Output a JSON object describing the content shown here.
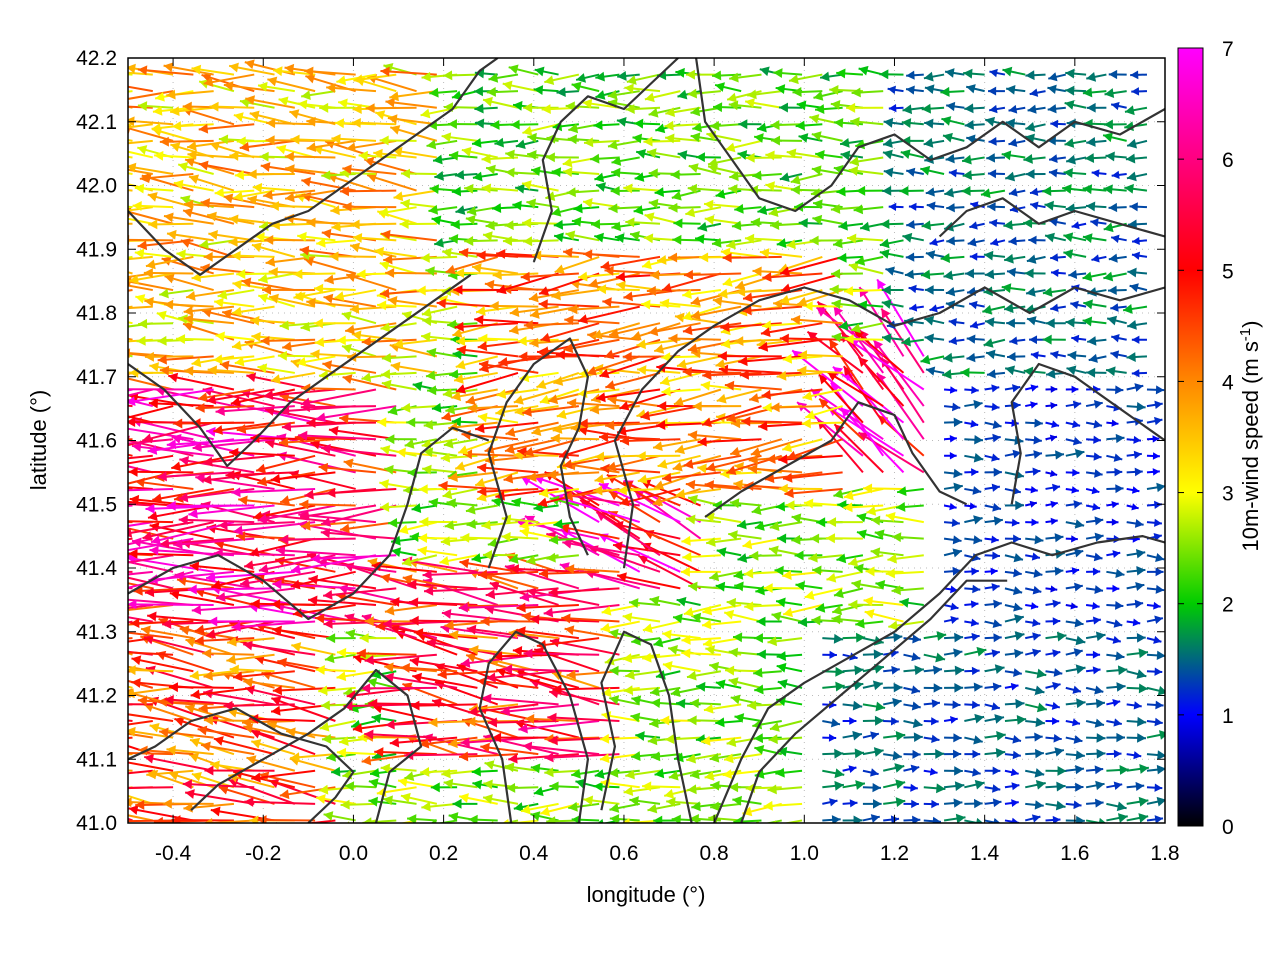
{
  "chart_data": {
    "type": "quiver",
    "xlabel": "longitude (°)",
    "ylabel": "latitude (°)",
    "xlim": [
      -0.5,
      1.8
    ],
    "ylim": [
      41.0,
      42.2
    ],
    "x_ticks": [
      "-0.4",
      "-0.2",
      "0.0",
      "0.2",
      "0.4",
      "0.6",
      "0.8",
      "1.0",
      "1.2",
      "1.4",
      "1.6",
      "1.8"
    ],
    "x_tick_values": [
      -0.4,
      -0.2,
      0.0,
      0.2,
      0.4,
      0.6,
      0.8,
      1.0,
      1.2,
      1.4,
      1.6,
      1.8
    ],
    "y_ticks": [
      "41.0",
      "41.1",
      "41.2",
      "41.3",
      "41.4",
      "41.5",
      "41.6",
      "41.7",
      "41.8",
      "41.9",
      "42.0",
      "42.1",
      "42.2"
    ],
    "y_tick_values": [
      41.0,
      41.1,
      41.2,
      41.3,
      41.4,
      41.5,
      41.6,
      41.7,
      41.8,
      41.9,
      42.0,
      42.1,
      42.2
    ],
    "grid": true,
    "colorbar": {
      "label": "10m-wind speed (m s",
      "label_sup": "-1",
      "label_end": ")",
      "range": [
        0,
        7
      ],
      "ticks": [
        "0",
        "1",
        "2",
        "3",
        "4",
        "5",
        "6",
        "7"
      ],
      "tick_values": [
        0,
        1,
        2,
        3,
        4,
        5,
        6,
        7
      ],
      "colors": [
        "#000000",
        "#0000ff",
        "#00cc00",
        "#ffff00",
        "#ff8800",
        "#ff0000",
        "#ff00ff"
      ]
    },
    "wind_field_regions": [
      {
        "lon": [
          -0.5,
          0.0
        ],
        "lat": [
          41.0,
          41.3
        ],
        "u": -4.0,
        "v": 0.4,
        "speed": 4.5
      },
      {
        "lon": [
          -0.5,
          0.1
        ],
        "lat": [
          41.3,
          41.7
        ],
        "u": -5.5,
        "v": 0.0,
        "speed": 5.5
      },
      {
        "lon": [
          -0.5,
          0.2
        ],
        "lat": [
          41.7,
          42.2
        ],
        "u": -3.5,
        "v": 0.2,
        "speed": 3.5
      },
      {
        "lon": [
          0.1,
          0.6
        ],
        "lat": [
          41.1,
          41.4
        ],
        "u": -4.5,
        "v": 0.5,
        "speed": 5.0
      },
      {
        "lon": [
          0.5,
          0.8
        ],
        "lat": [
          41.35,
          41.5
        ],
        "u": -2.5,
        "v": 1.0,
        "speed": 6.0
      },
      {
        "lon": [
          0.3,
          1.1
        ],
        "lat": [
          41.5,
          41.9
        ],
        "u": -3.5,
        "v": -0.3,
        "speed": 4.0
      },
      {
        "lon": [
          1.1,
          1.3
        ],
        "lat": [
          41.55,
          41.75
        ],
        "u": -1.5,
        "v": 1.5,
        "speed": 6.0
      },
      {
        "lon": [
          0.2,
          1.2
        ],
        "lat": [
          41.9,
          42.2
        ],
        "u": -2.0,
        "v": 0.0,
        "speed": 2.3
      },
      {
        "lon": [
          1.0,
          1.8
        ],
        "lat": [
          41.0,
          41.3
        ],
        "u": 1.5,
        "v": 0.0,
        "speed": 1.4
      },
      {
        "lon": [
          1.3,
          1.8
        ],
        "lat": [
          41.3,
          41.7
        ],
        "u": 0.5,
        "v": 0.0,
        "speed": 1.2
      },
      {
        "lon": [
          1.2,
          1.8
        ],
        "lat": [
          41.7,
          42.2
        ],
        "u": -1.0,
        "v": 0.0,
        "speed": 1.5
      }
    ],
    "contours": [
      [
        [
          0.05,
          41.0
        ],
        [
          0.08,
          41.08
        ],
        [
          0.15,
          41.12
        ],
        [
          0.12,
          41.2
        ],
        [
          0.05,
          41.24
        ],
        [
          -0.02,
          41.18
        ],
        [
          -0.1,
          41.14
        ],
        [
          -0.2,
          41.1
        ],
        [
          -0.3,
          41.06
        ],
        [
          -0.36,
          41.02
        ]
      ],
      [
        [
          0.35,
          41.0
        ],
        [
          0.33,
          41.1
        ],
        [
          0.28,
          41.18
        ],
        [
          0.3,
          41.25
        ],
        [
          0.36,
          41.3
        ],
        [
          0.42,
          41.28
        ],
        [
          0.48,
          41.2
        ],
        [
          0.52,
          41.1
        ],
        [
          0.5,
          41.0
        ]
      ],
      [
        [
          0.55,
          41.02
        ],
        [
          0.58,
          41.12
        ],
        [
          0.55,
          41.22
        ],
        [
          0.6,
          41.3
        ],
        [
          0.66,
          41.28
        ],
        [
          0.7,
          41.2
        ],
        [
          0.72,
          41.1
        ],
        [
          0.75,
          41.0
        ]
      ],
      [
        [
          0.8,
          41.0
        ],
        [
          0.86,
          41.1
        ],
        [
          0.92,
          41.18
        ],
        [
          1.0,
          41.22
        ],
        [
          1.1,
          41.26
        ],
        [
          1.2,
          41.3
        ],
        [
          1.3,
          41.36
        ],
        [
          1.38,
          41.42
        ],
        [
          1.46,
          41.44
        ],
        [
          1.55,
          41.42
        ],
        [
          1.65,
          41.44
        ],
        [
          1.75,
          41.45
        ],
        [
          1.8,
          41.44
        ]
      ],
      [
        [
          0.86,
          41.0
        ],
        [
          0.9,
          41.08
        ],
        [
          0.98,
          41.14
        ],
        [
          1.08,
          41.2
        ],
        [
          1.18,
          41.26
        ],
        [
          1.28,
          41.32
        ],
        [
          1.36,
          41.38
        ],
        [
          1.45,
          41.38
        ]
      ],
      [
        [
          -0.5,
          41.36
        ],
        [
          -0.4,
          41.4
        ],
        [
          -0.3,
          41.42
        ],
        [
          -0.2,
          41.38
        ],
        [
          -0.1,
          41.32
        ],
        [
          0.0,
          41.36
        ],
        [
          0.08,
          41.42
        ],
        [
          0.12,
          41.5
        ],
        [
          0.15,
          41.58
        ],
        [
          0.22,
          41.62
        ],
        [
          0.3,
          41.6
        ]
      ],
      [
        [
          -0.5,
          41.72
        ],
        [
          -0.42,
          41.68
        ],
        [
          -0.34,
          41.62
        ],
        [
          -0.28,
          41.56
        ],
        [
          -0.22,
          41.6
        ],
        [
          -0.14,
          41.66
        ],
        [
          -0.06,
          41.7
        ],
        [
          0.02,
          41.74
        ],
        [
          0.1,
          41.78
        ],
        [
          0.18,
          41.82
        ],
        [
          0.26,
          41.86
        ]
      ],
      [
        [
          0.3,
          41.4
        ],
        [
          0.34,
          41.48
        ],
        [
          0.3,
          41.58
        ],
        [
          0.34,
          41.66
        ],
        [
          0.4,
          41.72
        ],
        [
          0.48,
          41.76
        ],
        [
          0.52,
          41.7
        ],
        [
          0.5,
          41.62
        ],
        [
          0.46,
          41.56
        ],
        [
          0.48,
          41.48
        ],
        [
          0.52,
          41.42
        ]
      ],
      [
        [
          0.6,
          41.4
        ],
        [
          0.62,
          41.5
        ],
        [
          0.58,
          41.6
        ],
        [
          0.64,
          41.68
        ],
        [
          0.72,
          41.74
        ],
        [
          0.8,
          41.78
        ],
        [
          0.9,
          41.82
        ],
        [
          1.0,
          41.84
        ],
        [
          1.1,
          41.82
        ],
        [
          1.2,
          41.78
        ],
        [
          1.3,
          41.8
        ],
        [
          1.4,
          41.84
        ],
        [
          1.5,
          41.8
        ],
        [
          1.6,
          41.84
        ],
        [
          1.7,
          41.82
        ],
        [
          1.8,
          41.84
        ]
      ],
      [
        [
          0.78,
          41.48
        ],
        [
          0.86,
          41.52
        ],
        [
          0.96,
          41.56
        ],
        [
          1.06,
          41.6
        ],
        [
          1.12,
          41.66
        ],
        [
          1.2,
          41.64
        ],
        [
          1.24,
          41.58
        ],
        [
          1.3,
          41.52
        ],
        [
          1.36,
          41.5
        ]
      ],
      [
        [
          1.46,
          41.5
        ],
        [
          1.48,
          41.58
        ],
        [
          1.46,
          41.66
        ],
        [
          1.52,
          41.72
        ],
        [
          1.6,
          41.7
        ],
        [
          1.68,
          41.66
        ],
        [
          1.76,
          41.62
        ],
        [
          1.8,
          41.6
        ]
      ],
      [
        [
          -0.5,
          41.96
        ],
        [
          -0.42,
          41.9
        ],
        [
          -0.34,
          41.86
        ],
        [
          -0.26,
          41.9
        ],
        [
          -0.18,
          41.94
        ],
        [
          -0.1,
          41.96
        ],
        [
          -0.02,
          42.0
        ],
        [
          0.06,
          42.04
        ],
        [
          0.14,
          42.08
        ],
        [
          0.22,
          42.12
        ],
        [
          0.28,
          42.18
        ],
        [
          0.32,
          42.2
        ]
      ],
      [
        [
          0.4,
          41.88
        ],
        [
          0.44,
          41.96
        ],
        [
          0.42,
          42.04
        ],
        [
          0.46,
          42.1
        ],
        [
          0.52,
          42.14
        ],
        [
          0.6,
          42.12
        ],
        [
          0.66,
          42.16
        ],
        [
          0.72,
          42.2
        ]
      ],
      [
        [
          0.76,
          42.2
        ],
        [
          0.78,
          42.1
        ],
        [
          0.84,
          42.04
        ],
        [
          0.9,
          41.98
        ],
        [
          0.98,
          41.96
        ],
        [
          1.06,
          42.0
        ],
        [
          1.12,
          42.06
        ],
        [
          1.2,
          42.08
        ],
        [
          1.28,
          42.04
        ],
        [
          1.36,
          42.06
        ],
        [
          1.44,
          42.1
        ],
        [
          1.52,
          42.06
        ],
        [
          1.6,
          42.1
        ],
        [
          1.7,
          42.08
        ],
        [
          1.8,
          42.12
        ]
      ],
      [
        [
          1.3,
          41.92
        ],
        [
          1.36,
          41.96
        ],
        [
          1.44,
          41.98
        ],
        [
          1.52,
          41.94
        ],
        [
          1.6,
          41.96
        ],
        [
          1.7,
          41.94
        ],
        [
          1.8,
          41.92
        ]
      ],
      [
        [
          -0.1,
          41.0
        ],
        [
          -0.04,
          41.04
        ],
        [
          0.0,
          41.08
        ],
        [
          -0.06,
          41.12
        ],
        [
          -0.16,
          41.14
        ],
        [
          -0.26,
          41.18
        ],
        [
          -0.36,
          41.16
        ],
        [
          -0.44,
          41.12
        ],
        [
          -0.5,
          41.1
        ]
      ]
    ]
  }
}
